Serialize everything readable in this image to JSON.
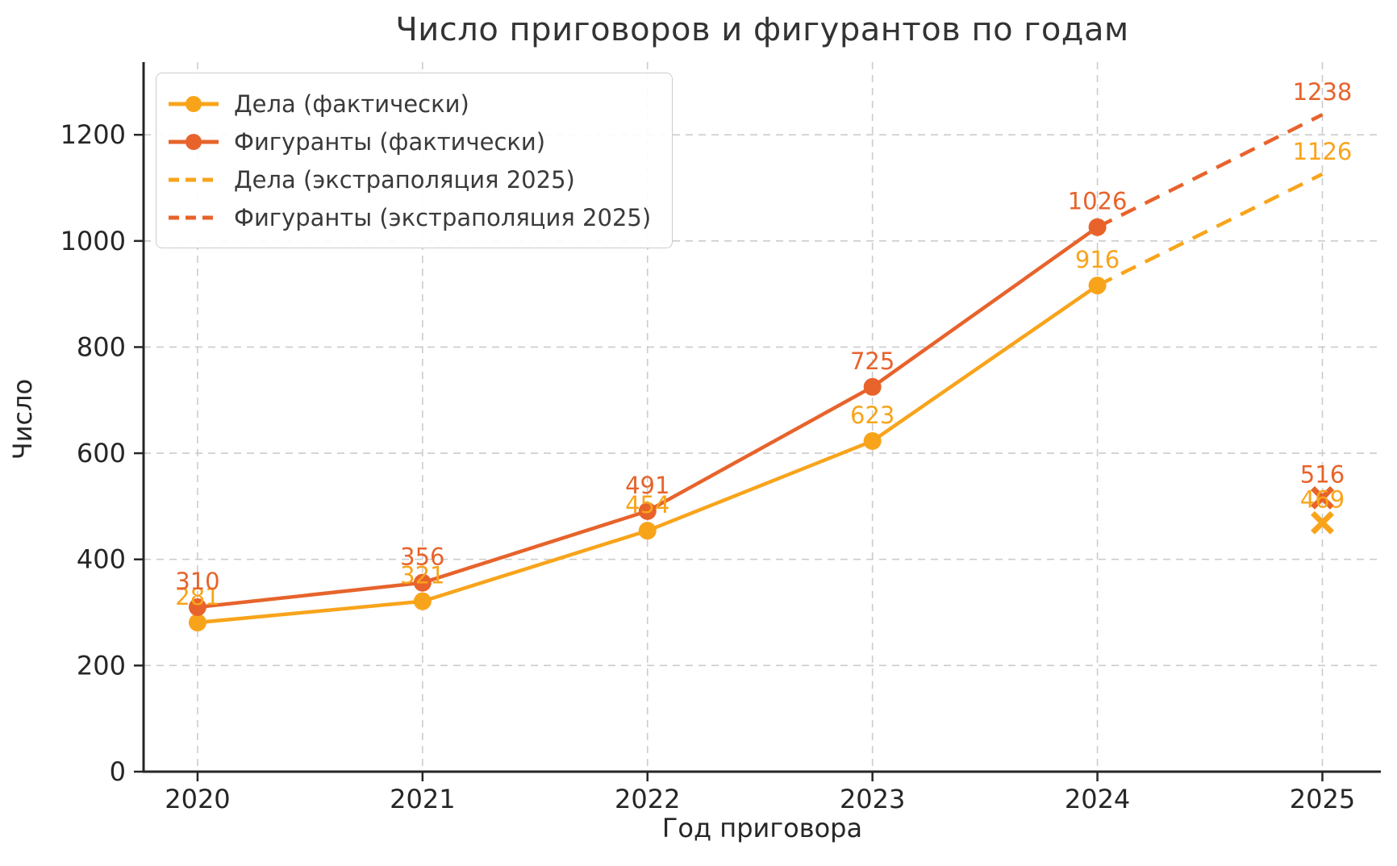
{
  "chart_data": {
    "type": "line",
    "title": "Число приговоров и фигурантов по годам",
    "xlabel": "Год приговора",
    "ylabel": "Число",
    "x_tick_labels": [
      "2020",
      "2021",
      "2022",
      "2023",
      "2024",
      "2025"
    ],
    "x_tick_values": [
      2020,
      2021,
      2022,
      2023,
      2024,
      2025
    ],
    "y_ticks": [
      0,
      200,
      400,
      600,
      800,
      1000,
      1200
    ],
    "xlim": [
      2019.76,
      2025.26
    ],
    "ylim": [
      0,
      1337
    ],
    "grid": true,
    "legend_position": "upper-left",
    "colors": {
      "cases": "#F8A41B",
      "defendants": "#E7632B",
      "grid": "#cccccc",
      "axis": "#262626",
      "tick_text": "#262626",
      "title_text": "#333333"
    },
    "series": [
      {
        "id": "cases-actual",
        "name": "Дела (фактически)",
        "color_key": "cases",
        "style": "solid",
        "marker": "circle",
        "x": [
          2020,
          2021,
          2022,
          2023,
          2024
        ],
        "values": [
          281,
          321,
          454,
          623,
          916
        ],
        "labels": [
          "281",
          "321",
          "454",
          "623",
          "916"
        ]
      },
      {
        "id": "defendants-actual",
        "name": "Фигуранты (фактически)",
        "color_key": "defendants",
        "style": "solid",
        "marker": "circle",
        "x": [
          2020,
          2021,
          2022,
          2023,
          2024
        ],
        "values": [
          310,
          356,
          491,
          725,
          1026
        ],
        "labels": [
          "310",
          "356",
          "491",
          "725",
          "1026"
        ]
      },
      {
        "id": "cases-extrapolation",
        "name": "Дела (экстраполяция 2025)",
        "color_key": "cases",
        "style": "dashed",
        "marker": "none",
        "x": [
          2024,
          2025
        ],
        "values": [
          916,
          1126
        ],
        "labels": [
          null,
          "1126"
        ]
      },
      {
        "id": "defendants-extrapolation",
        "name": "Фигуранты (экстраполяция 2025)",
        "color_key": "defendants",
        "style": "dashed",
        "marker": "none",
        "x": [
          2024,
          2025
        ],
        "values": [
          1026,
          1238
        ],
        "labels": [
          null,
          "1238"
        ]
      }
    ],
    "extra_points": [
      {
        "id": "defendants-2025-partial",
        "color_key": "defendants",
        "marker": "x",
        "x": 2025,
        "value": 516,
        "label": "516"
      },
      {
        "id": "cases-2025-partial",
        "color_key": "cases",
        "marker": "x",
        "x": 2025,
        "value": 469,
        "label": "469"
      }
    ],
    "legend": [
      {
        "label": "Дела (фактически)",
        "color_key": "cases",
        "style": "solid",
        "marker": "circle"
      },
      {
        "label": "Фигуранты (фактически)",
        "color_key": "defendants",
        "style": "solid",
        "marker": "circle"
      },
      {
        "label": "Дела (экстраполяция 2025)",
        "color_key": "cases",
        "style": "dashed",
        "marker": "none"
      },
      {
        "label": "Фигуранты (экстраполяция 2025)",
        "color_key": "defendants",
        "style": "dashed",
        "marker": "none"
      }
    ]
  }
}
